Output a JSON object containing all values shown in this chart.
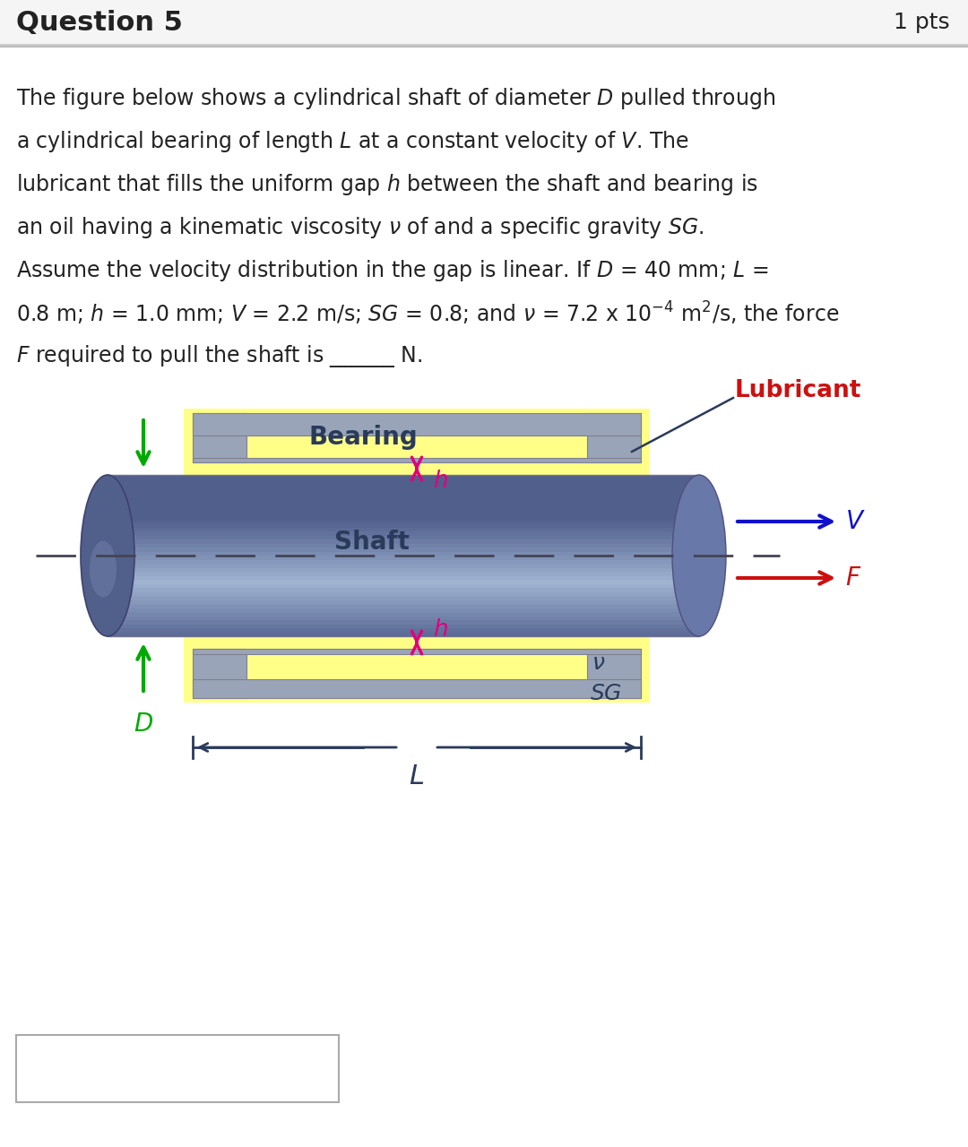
{
  "title": "Question 5",
  "pts": "1 pts",
  "bg_color": "#ffffff",
  "bearing_color": "#9aa4b8",
  "shaft_color_mid": "#8898b8",
  "shaft_color_light": "#b8c8e0",
  "shaft_color_dark": "#6070a0",
  "yellow_color": "#ffff88",
  "magenta_color": "#e0007f",
  "green_color": "#00aa00",
  "blue_color": "#1010cc",
  "red_color": "#cc1010",
  "dark_color": "#2a3a5a",
  "text_color": "#222222",
  "line1": "The figure below shows a cylindrical shaft of diameter $D$ pulled through",
  "line2": "a cylindrical bearing of length $L$ at a constant velocity of $V$. The",
  "line3": "lubricant that fills the uniform gap $h$ between the shaft and bearing is",
  "line4": "an oil having a kinematic viscosity $\\nu$ of and a specific gravity $SG$.",
  "line5": "Assume the velocity distribution in the gap is linear. If $D$ = 40 mm; $L$ =",
  "line6": "0.8 m; $h$ = 1.0 mm; $V$ = 2.2 m/s; $SG$ = 0.8; and $\\nu$ = 7.2 x 10$^{-4}$ m$^2$/s, the force",
  "line7": "$F$ required to pull the shaft is ______ N."
}
